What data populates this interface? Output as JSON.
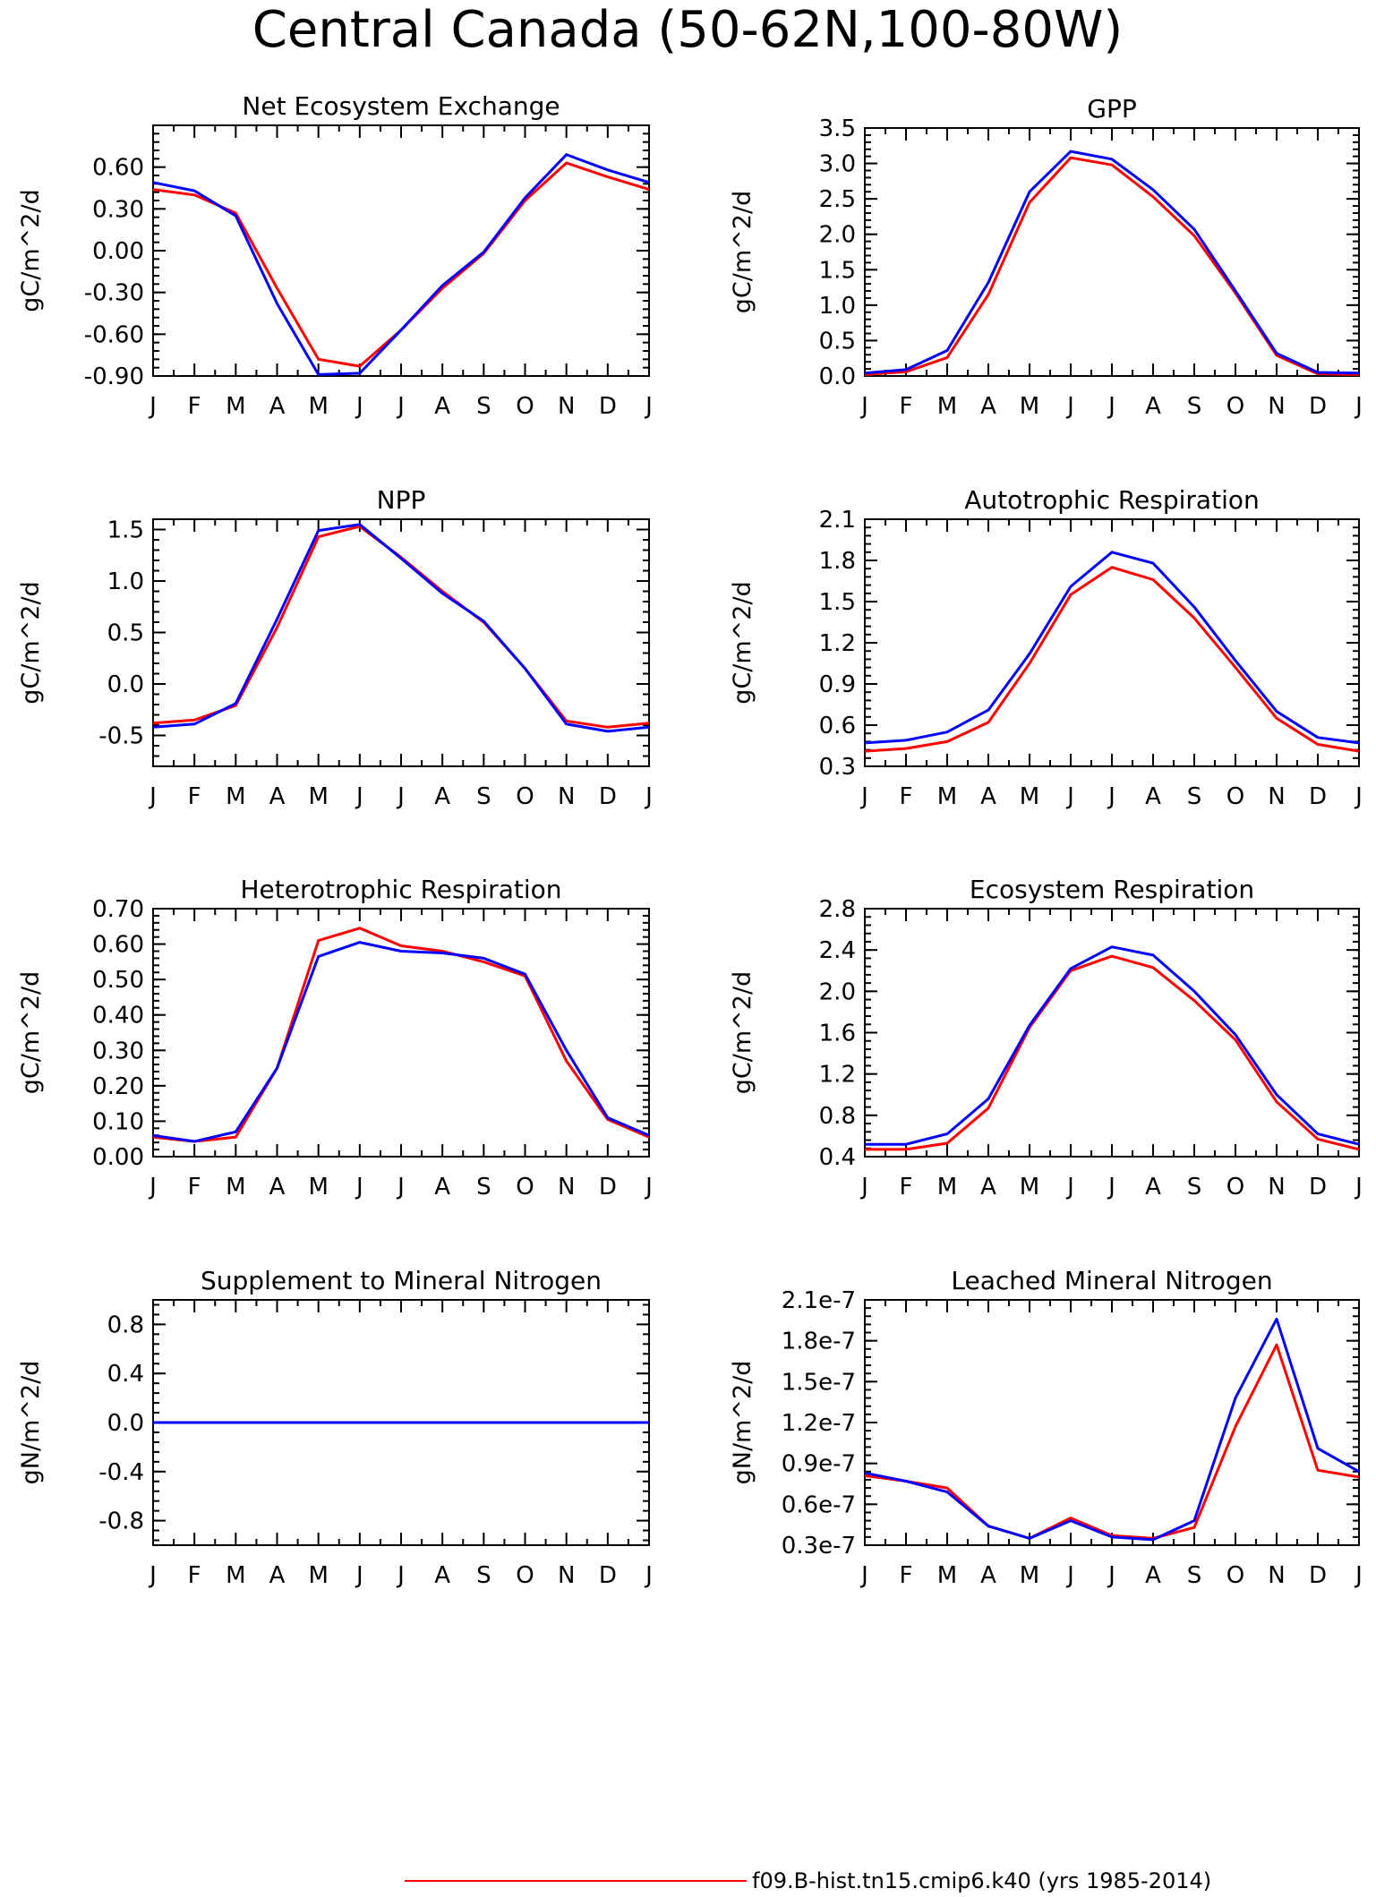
{
  "page_title": "Central Canada (50-62N,100-80W)",
  "legend": {
    "line_label": "f09.B-hist.tn15.cmip6.k40 (yrs 1985-2014)",
    "color": "#ff0000"
  },
  "colors": {
    "series_a": "#ff0000",
    "series_b": "#0000ff"
  },
  "chart_data": [
    {
      "type": "line",
      "title": "Net Ecosystem Exchange",
      "ylabel": "gC/m^2/d",
      "x": [
        "J",
        "F",
        "M",
        "A",
        "M",
        "J",
        "J",
        "A",
        "S",
        "O",
        "N",
        "D",
        "J"
      ],
      "ylim": [
        -0.9,
        0.9
      ],
      "yticks": [
        -0.9,
        -0.6,
        -0.3,
        0.0,
        0.3,
        0.6
      ],
      "ytick_labels": [
        "-0.90",
        "-0.60",
        "-0.30",
        "0.00",
        "0.30",
        "0.60"
      ],
      "series": [
        {
          "color": "#ff0000",
          "values": [
            0.44,
            0.4,
            0.27,
            -0.27,
            -0.78,
            -0.83,
            -0.57,
            -0.27,
            -0.02,
            0.36,
            0.63,
            0.53,
            0.44
          ]
        },
        {
          "color": "#0000ff",
          "values": [
            0.49,
            0.43,
            0.25,
            -0.38,
            -0.89,
            -0.88,
            -0.57,
            -0.25,
            -0.01,
            0.38,
            0.69,
            0.58,
            0.49
          ]
        }
      ]
    },
    {
      "type": "line",
      "title": "GPP",
      "ylabel": "gC/m^2/d",
      "x": [
        "J",
        "F",
        "M",
        "A",
        "M",
        "J",
        "J",
        "A",
        "S",
        "O",
        "N",
        "D",
        "J"
      ],
      "ylim": [
        0,
        3.5
      ],
      "yticks": [
        0,
        0.5,
        1.0,
        1.5,
        2.0,
        2.5,
        3.0,
        3.5
      ],
      "ytick_labels": [
        "0.0",
        "0.5",
        "1.0",
        "1.5",
        "2.0",
        "2.5",
        "3.0",
        "3.5"
      ],
      "series": [
        {
          "color": "#ff0000",
          "values": [
            0.02,
            0.06,
            0.26,
            1.15,
            2.45,
            3.08,
            2.98,
            2.53,
            1.98,
            1.17,
            0.29,
            0.03,
            0.02
          ]
        },
        {
          "color": "#0000ff",
          "values": [
            0.04,
            0.09,
            0.36,
            1.32,
            2.6,
            3.17,
            3.06,
            2.63,
            2.07,
            1.2,
            0.32,
            0.05,
            0.04
          ]
        }
      ]
    },
    {
      "type": "line",
      "title": "NPP",
      "ylabel": "gC/m^2/d",
      "x": [
        "J",
        "F",
        "M",
        "A",
        "M",
        "J",
        "J",
        "A",
        "S",
        "O",
        "N",
        "D",
        "J"
      ],
      "ylim": [
        -0.8,
        1.6
      ],
      "yticks": [
        -0.5,
        0.0,
        0.5,
        1.0,
        1.5
      ],
      "ytick_labels": [
        "-0.5",
        "0.0",
        "0.5",
        "1.0",
        "1.5"
      ],
      "series": [
        {
          "color": "#ff0000",
          "values": [
            -0.38,
            -0.35,
            -0.21,
            0.55,
            1.43,
            1.53,
            1.23,
            0.9,
            0.6,
            0.15,
            -0.36,
            -0.42,
            -0.38
          ]
        },
        {
          "color": "#0000ff",
          "values": [
            -0.42,
            -0.39,
            -0.19,
            0.63,
            1.49,
            1.55,
            1.22,
            0.88,
            0.61,
            0.15,
            -0.39,
            -0.46,
            -0.42
          ]
        }
      ]
    },
    {
      "type": "line",
      "title": "Autotrophic Respiration",
      "ylabel": "gC/m^2/d",
      "x": [
        "J",
        "F",
        "M",
        "A",
        "M",
        "J",
        "J",
        "A",
        "S",
        "O",
        "N",
        "D",
        "J"
      ],
      "ylim": [
        0.3,
        2.1
      ],
      "yticks": [
        0.3,
        0.6,
        0.9,
        1.2,
        1.5,
        1.8,
        2.1
      ],
      "ytick_labels": [
        "0.3",
        "0.6",
        "0.9",
        "1.2",
        "1.5",
        "1.8",
        "2.1"
      ],
      "series": [
        {
          "color": "#ff0000",
          "values": [
            0.41,
            0.43,
            0.48,
            0.62,
            1.05,
            1.55,
            1.75,
            1.66,
            1.38,
            1.02,
            0.65,
            0.46,
            0.41
          ]
        },
        {
          "color": "#0000ff",
          "values": [
            0.47,
            0.49,
            0.55,
            0.71,
            1.12,
            1.61,
            1.86,
            1.78,
            1.46,
            1.07,
            0.7,
            0.51,
            0.47
          ]
        }
      ]
    },
    {
      "type": "line",
      "title": "Heterotrophic Respiration",
      "ylabel": "gC/m^2/d",
      "x": [
        "J",
        "F",
        "M",
        "A",
        "M",
        "J",
        "J",
        "A",
        "S",
        "O",
        "N",
        "D",
        "J"
      ],
      "ylim": [
        0,
        0.7
      ],
      "yticks": [
        0,
        0.1,
        0.2,
        0.3,
        0.4,
        0.5,
        0.6,
        0.7
      ],
      "ytick_labels": [
        "0.00",
        "0.10",
        "0.20",
        "0.30",
        "0.40",
        "0.50",
        "0.60",
        "0.70"
      ],
      "series": [
        {
          "color": "#ff0000",
          "values": [
            0.055,
            0.043,
            0.055,
            0.25,
            0.61,
            0.645,
            0.595,
            0.58,
            0.55,
            0.51,
            0.27,
            0.105,
            0.055
          ]
        },
        {
          "color": "#0000ff",
          "values": [
            0.06,
            0.043,
            0.07,
            0.25,
            0.565,
            0.605,
            0.58,
            0.575,
            0.56,
            0.515,
            0.3,
            0.11,
            0.06
          ]
        }
      ]
    },
    {
      "type": "line",
      "title": "Ecosystem Respiration",
      "ylabel": "gC/m^2/d",
      "x": [
        "J",
        "F",
        "M",
        "A",
        "M",
        "J",
        "J",
        "A",
        "S",
        "O",
        "N",
        "D",
        "J"
      ],
      "ylim": [
        0.4,
        2.8
      ],
      "yticks": [
        0.4,
        0.8,
        1.2,
        1.6,
        2.0,
        2.4,
        2.8
      ],
      "ytick_labels": [
        "0.4",
        "0.8",
        "1.2",
        "1.6",
        "2.0",
        "2.4",
        "2.8"
      ],
      "series": [
        {
          "color": "#ff0000",
          "values": [
            0.47,
            0.47,
            0.53,
            0.87,
            1.65,
            2.2,
            2.34,
            2.23,
            1.91,
            1.53,
            0.93,
            0.57,
            0.47
          ]
        },
        {
          "color": "#0000ff",
          "values": [
            0.52,
            0.52,
            0.62,
            0.96,
            1.67,
            2.22,
            2.43,
            2.35,
            2.0,
            1.58,
            1.0,
            0.62,
            0.52
          ]
        }
      ]
    },
    {
      "type": "line",
      "title": "Supplement to Mineral Nitrogen",
      "ylabel": "gN/m^2/d",
      "x": [
        "J",
        "F",
        "M",
        "A",
        "M",
        "J",
        "J",
        "A",
        "S",
        "O",
        "N",
        "D",
        "J"
      ],
      "ylim": [
        -1.0,
        1.0
      ],
      "yticks": [
        -0.8,
        -0.4,
        0.0,
        0.4,
        0.8
      ],
      "ytick_labels": [
        "-0.8",
        "-0.4",
        "0.0",
        "0.4",
        "0.8"
      ],
      "series": [
        {
          "color": "#ff0000",
          "values": [
            0,
            0,
            0,
            0,
            0,
            0,
            0,
            0,
            0,
            0,
            0,
            0,
            0
          ]
        },
        {
          "color": "#0000ff",
          "values": [
            0,
            0,
            0,
            0,
            0,
            0,
            0,
            0,
            0,
            0,
            0,
            0,
            0
          ]
        }
      ]
    },
    {
      "type": "line",
      "title": "Leached Mineral Nitrogen",
      "ylabel": "gN/m^2/d",
      "x": [
        "J",
        "F",
        "M",
        "A",
        "M",
        "J",
        "J",
        "A",
        "S",
        "O",
        "N",
        "D",
        "J"
      ],
      "ylim": [
        3e-08,
        2.1e-07
      ],
      "yticks": [
        3e-08,
        6e-08,
        9e-08,
        1.2e-07,
        1.5e-07,
        1.8e-07,
        2.1e-07
      ],
      "ytick_labels": [
        "0.3e-7",
        "0.6e-7",
        "0.9e-7",
        "1.2e-7",
        "1.5e-7",
        "1.8e-7",
        "2.1e-7"
      ],
      "series": [
        {
          "color": "#ff0000",
          "values": [
            8.1e-08,
            7.7e-08,
            7.2e-08,
            4.4e-08,
            3.5e-08,
            5e-08,
            3.7e-08,
            3.5e-08,
            4.3e-08,
            1.17e-07,
            1.77e-07,
            8.5e-08,
            8e-08
          ]
        },
        {
          "color": "#0000ff",
          "values": [
            8.3e-08,
            7.7e-08,
            6.9e-08,
            4.4e-08,
            3.5e-08,
            4.8e-08,
            3.6e-08,
            3.4e-08,
            4.8e-08,
            1.38e-07,
            1.96e-07,
            1.01e-07,
            8.4e-08
          ]
        }
      ]
    }
  ]
}
